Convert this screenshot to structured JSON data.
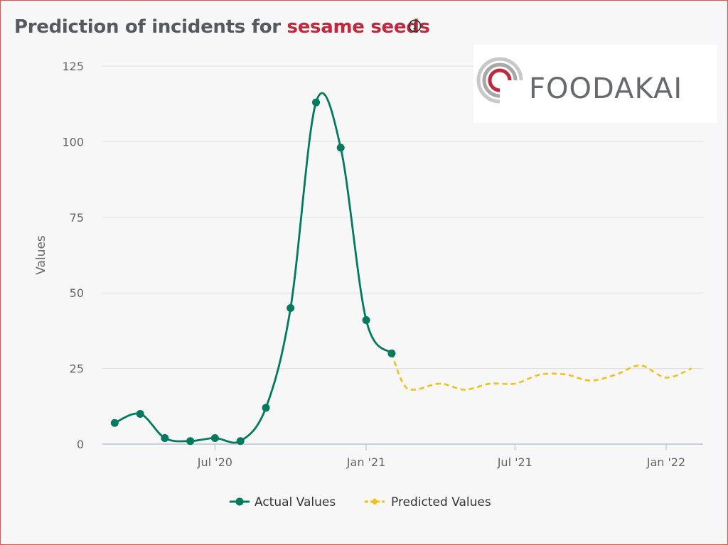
{
  "header": {
    "title_prefix": "Prediction of incidents for ",
    "title_highlight": "sesame seeds",
    "info_icon": "info-circle-icon"
  },
  "logo": {
    "text": "FOODAKAI"
  },
  "colors": {
    "title": "#555a60",
    "highlight": "#c0283c",
    "actual": "#007a5e",
    "predicted": "#f2c01e",
    "grid": "#e4e4e4",
    "frame_border": "#d9534f"
  },
  "chart_data": {
    "type": "line",
    "ylabel": "Values",
    "xlabel": "",
    "ylim": [
      0,
      125
    ],
    "yticks": [
      0,
      25,
      50,
      75,
      100,
      125
    ],
    "grid": true,
    "legend_position": "bottom-center",
    "x_ticks": [
      {
        "date": "2020-07-01",
        "label": "Jul '20"
      },
      {
        "date": "2021-01-01",
        "label": "Jan '21"
      },
      {
        "date": "2021-07-01",
        "label": "Jul '21"
      },
      {
        "date": "2022-01-01",
        "label": "Jan '22"
      }
    ],
    "series": [
      {
        "name": "Actual Values",
        "style": "solid-with-markers",
        "points": [
          {
            "x": "2020-03-01",
            "y": 7
          },
          {
            "x": "2020-04-01",
            "y": 10
          },
          {
            "x": "2020-05-01",
            "y": 2
          },
          {
            "x": "2020-06-01",
            "y": 1
          },
          {
            "x": "2020-07-01",
            "y": 2
          },
          {
            "x": "2020-08-01",
            "y": 1
          },
          {
            "x": "2020-09-01",
            "y": 12
          },
          {
            "x": "2020-10-01",
            "y": 45
          },
          {
            "x": "2020-11-01",
            "y": 113
          },
          {
            "x": "2020-12-01",
            "y": 98
          },
          {
            "x": "2021-01-01",
            "y": 41
          },
          {
            "x": "2021-02-01",
            "y": 30
          }
        ]
      },
      {
        "name": "Predicted Values",
        "style": "dashed",
        "points": [
          {
            "x": "2021-02-01",
            "y": 30
          },
          {
            "x": "2021-02-15",
            "y": 20
          },
          {
            "x": "2021-03-01",
            "y": 18
          },
          {
            "x": "2021-04-01",
            "y": 20
          },
          {
            "x": "2021-05-01",
            "y": 18
          },
          {
            "x": "2021-06-01",
            "y": 20
          },
          {
            "x": "2021-07-01",
            "y": 20
          },
          {
            "x": "2021-08-01",
            "y": 23
          },
          {
            "x": "2021-09-01",
            "y": 23
          },
          {
            "x": "2021-10-01",
            "y": 21
          },
          {
            "x": "2021-11-01",
            "y": 23
          },
          {
            "x": "2021-12-01",
            "y": 26
          },
          {
            "x": "2022-01-01",
            "y": 22
          },
          {
            "x": "2022-02-01",
            "y": 25
          }
        ]
      }
    ]
  }
}
